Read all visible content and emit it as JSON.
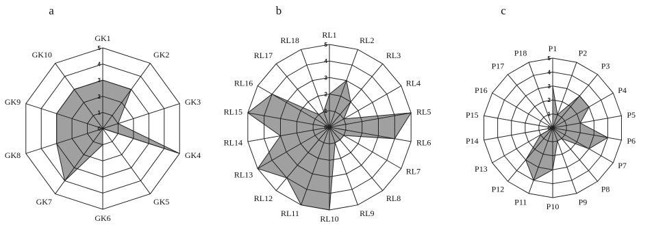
{
  "figure": {
    "background": "#ffffff",
    "fill_color": "#a0a0a0",
    "line_color": "#222222"
  },
  "chart_data": [
    {
      "type": "radar",
      "panel": "a",
      "categories": [
        "GK1",
        "GK2",
        "GK3",
        "GK4",
        "GK5",
        "GK6",
        "GK7",
        "GK8",
        "GK9",
        "GK10"
      ],
      "values": [
        3,
        3,
        1,
        5,
        0,
        1,
        4,
        3,
        3,
        3
      ],
      "ticks": [
        "0",
        "1",
        "2",
        "3",
        "4",
        "5"
      ],
      "rlim": [
        0,
        5
      ],
      "grid": true
    },
    {
      "type": "radar",
      "panel": "b",
      "categories": [
        "RL1",
        "RL2",
        "RL3",
        "RL4",
        "RL5",
        "RL6",
        "RL7",
        "RL8",
        "RL9",
        "RL10",
        "RL11",
        "RL12",
        "RL13",
        "RL14",
        "RL15",
        "RL16",
        "RL17",
        "RL18"
      ],
      "values": [
        2,
        3,
        2,
        1,
        5,
        4,
        1,
        1,
        1,
        5,
        5,
        4,
        5,
        3,
        5,
        4,
        1,
        1
      ],
      "ticks": [
        "0",
        "1",
        "2",
        "3",
        "4",
        "5"
      ],
      "rlim": [
        0,
        5
      ],
      "grid": true
    },
    {
      "type": "radar",
      "panel": "c",
      "categories": [
        "P1",
        "P2",
        "P3",
        "P4",
        "P5",
        "P6",
        "P7",
        "P8",
        "P9",
        "P10",
        "P11",
        "P12",
        "P13",
        "P14",
        "P15",
        "P16",
        "P17",
        "P18"
      ],
      "values": [
        3,
        1,
        3,
        3,
        2,
        4,
        3,
        1,
        1,
        3,
        4,
        3,
        1,
        0,
        0,
        0,
        0,
        0
      ],
      "ticks": [
        "0",
        "1",
        "2",
        "3",
        "4",
        "5"
      ],
      "rlim": [
        0,
        5
      ],
      "grid": true
    }
  ]
}
